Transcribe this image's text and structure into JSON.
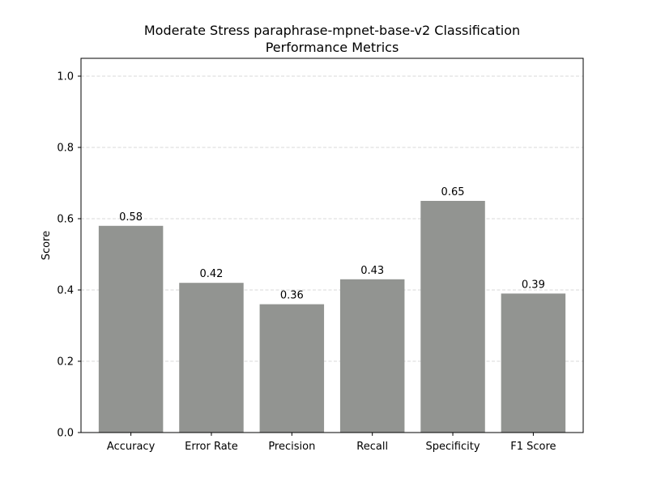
{
  "chart_data": {
    "type": "bar",
    "title_lines": [
      "Moderate Stress paraphrase-mpnet-base-v2 Classification",
      "Performance Metrics"
    ],
    "xlabel": "",
    "ylabel": "Score",
    "categories": [
      "Accuracy",
      "Error Rate",
      "Precision",
      "Recall",
      "Specificity",
      "F1 Score"
    ],
    "values": [
      0.58,
      0.42,
      0.36,
      0.43,
      0.65,
      0.39
    ],
    "value_labels": [
      "0.58",
      "0.42",
      "0.36",
      "0.43",
      "0.65",
      "0.39"
    ],
    "ylim": [
      0,
      1.05
    ],
    "yticks": [
      0.0,
      0.2,
      0.4,
      0.6,
      0.8,
      1.0
    ],
    "ytick_labels": [
      "0.0",
      "0.2",
      "0.4",
      "0.6",
      "0.8",
      "1.0"
    ],
    "grid": "y-dashed",
    "bar_color": "#929491",
    "grid_color": "#cccccc"
  }
}
